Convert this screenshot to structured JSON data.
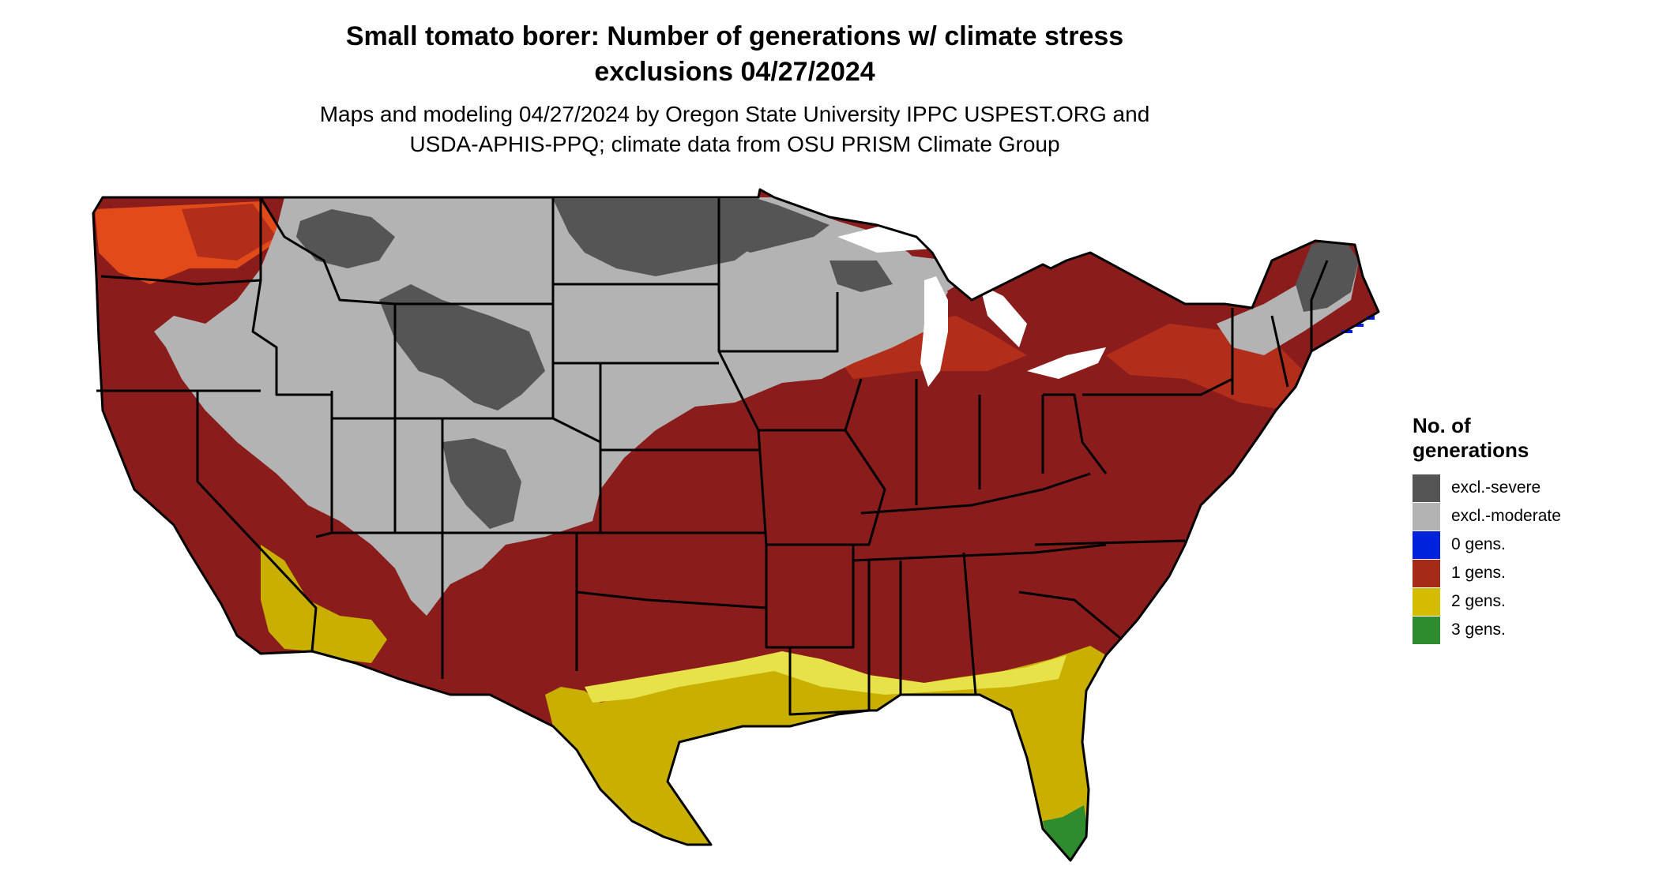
{
  "title": {
    "line1": "Small tomato borer: Number of generations w/ climate stress",
    "line2": "exclusions 04/27/2024"
  },
  "subtitle": {
    "line1": "Maps and modeling 04/27/2024 by Oregon State University IPPC USPEST.ORG and",
    "line2": "USDA-APHIS-PPQ; climate data from OSU PRISM Climate Group"
  },
  "legend": {
    "title_line1": "No. of",
    "title_line2": "generations",
    "items": [
      {
        "label": "excl.-severe",
        "color": "#555555"
      },
      {
        "label": "excl.-moderate",
        "color": "#b3b3b3"
      },
      {
        "label": "0 gens.",
        "color": "#0022dd"
      },
      {
        "label": "1 gens.",
        "color": "#a52a17"
      },
      {
        "label": "2 gens.",
        "color": "#d4bc00"
      },
      {
        "label": "3 gens.",
        "color": "#2e8b2e"
      }
    ]
  },
  "map_colors": {
    "main": "#8b1c1c",
    "light": "#b22e1a",
    "bright": "#e24a1a",
    "severe": "#555555",
    "moderate": "#b3b3b3",
    "two_gen": "#c9b000",
    "two_gen_light": "#e8e24a",
    "three_gen": "#2e8b2e",
    "zero_gen": "#0022dd",
    "border": "#000000"
  }
}
